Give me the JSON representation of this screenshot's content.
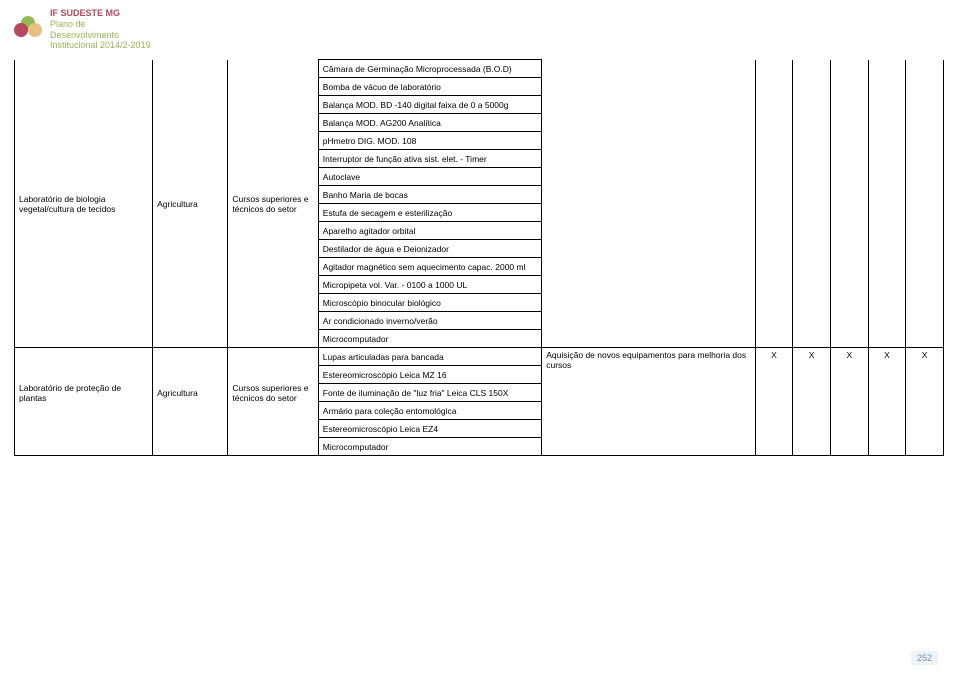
{
  "header": {
    "topline": "IF SUDESTE MG",
    "line1": "Plano de",
    "line2": "Desenvolvimento",
    "line3": "Institucional 2014/2-2019"
  },
  "colors": {
    "brandRed": "#b8475e",
    "brandGreen": "#95b857",
    "border": "#000000"
  },
  "table": {
    "block1": {
      "lab": "Laboratório de biologia vegetal/cultura de tecidos",
      "area": "Agricultura",
      "curso": "Cursos superiores e técnicos do setor",
      "items": [
        "Câmara de Germinação Microprocessada (B.O.D)",
        "Bomba de vácuo de laboratório",
        "Balança MOD. BD -140 digital faixa de 0 a 5000g",
        "Balança MOD. AG200 Analítica",
        "pHmetro DIG. MOD. 108",
        "Interruptor de função ativa sist. elet. - Timer",
        "Autoclave",
        "Banho Maria de bocas",
        "Estufa de secagem e esterilização",
        "Aparelho agitador orbital",
        "Destilador de água e Deionizador",
        "Agitador magnético sem aquecimento capac. 2000 ml",
        "Micropipeta vol. Var. - 0100 a 1000 UL",
        "Microscópio binocular biológico",
        "Ar condicionado inverno/verão",
        "Microcomputador"
      ]
    },
    "block2": {
      "lab": "Laboratório de proteção de plantas",
      "area": "Agricultura",
      "curso": "Cursos superiores e técnicos do setor",
      "items": [
        "Lupas articuladas para bancada",
        "Estereomicroscópio Leica MZ 16",
        "Fonte de iluminação de \"luz fria\" Leica CLS 150X",
        "Armário para coleção entomológica",
        "Estereomicroscópio Leica EZ4",
        "Microcomputador"
      ],
      "aquisicao": "Aquisição de novos equipamentos para melhoria dos cursos",
      "x": "X"
    }
  },
  "pageNum": "252"
}
